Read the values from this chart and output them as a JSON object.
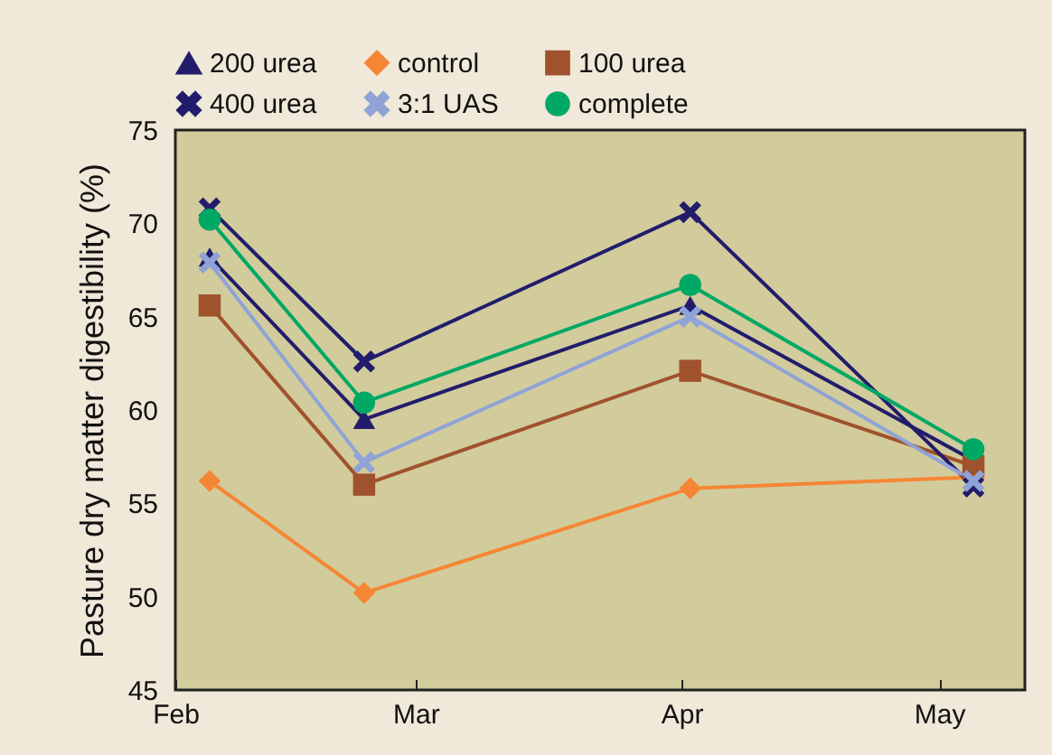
{
  "chart_data": {
    "type": "line",
    "ylabel": "Pasture dry matter digestibility (%)",
    "x": [
      "--02-05",
      "--02-23",
      "--04-02",
      "--05-05"
    ],
    "xlim": [
      "--02-01",
      "--05-11"
    ],
    "xticks": [
      {
        "value": "--02-01",
        "label": "Feb"
      },
      {
        "value": "--03-01",
        "label": "Mar"
      },
      {
        "value": "--04-01",
        "label": "Apr"
      },
      {
        "value": "--05-01",
        "label": "May"
      }
    ],
    "ylim": [
      45,
      75
    ],
    "yticks": [
      45,
      50,
      55,
      60,
      65,
      70,
      75
    ],
    "grid": false,
    "legend": "top",
    "series": [
      {
        "name": "200 urea",
        "color": "#221c6b",
        "marker": "triangle",
        "values": [
          68.2,
          59.5,
          65.6,
          57.3
        ]
      },
      {
        "name": "control",
        "color": "#f58634",
        "marker": "diamond",
        "values": [
          56.2,
          50.2,
          55.8,
          56.4
        ]
      },
      {
        "name": "100 urea",
        "color": "#a0522d",
        "marker": "square",
        "values": [
          65.6,
          56.0,
          62.1,
          57.0
        ]
      },
      {
        "name": "400 urea",
        "color": "#221c6b",
        "marker": "cross",
        "values": [
          70.8,
          62.6,
          70.6,
          55.9
        ]
      },
      {
        "name": "3:1 UAS",
        "color": "#8fa3d6",
        "marker": "cross",
        "values": [
          67.9,
          57.2,
          65.0,
          56.2
        ]
      },
      {
        "name": "complete",
        "color": "#00a865",
        "marker": "circle",
        "values": [
          70.2,
          60.4,
          66.7,
          57.9
        ]
      }
    ]
  }
}
